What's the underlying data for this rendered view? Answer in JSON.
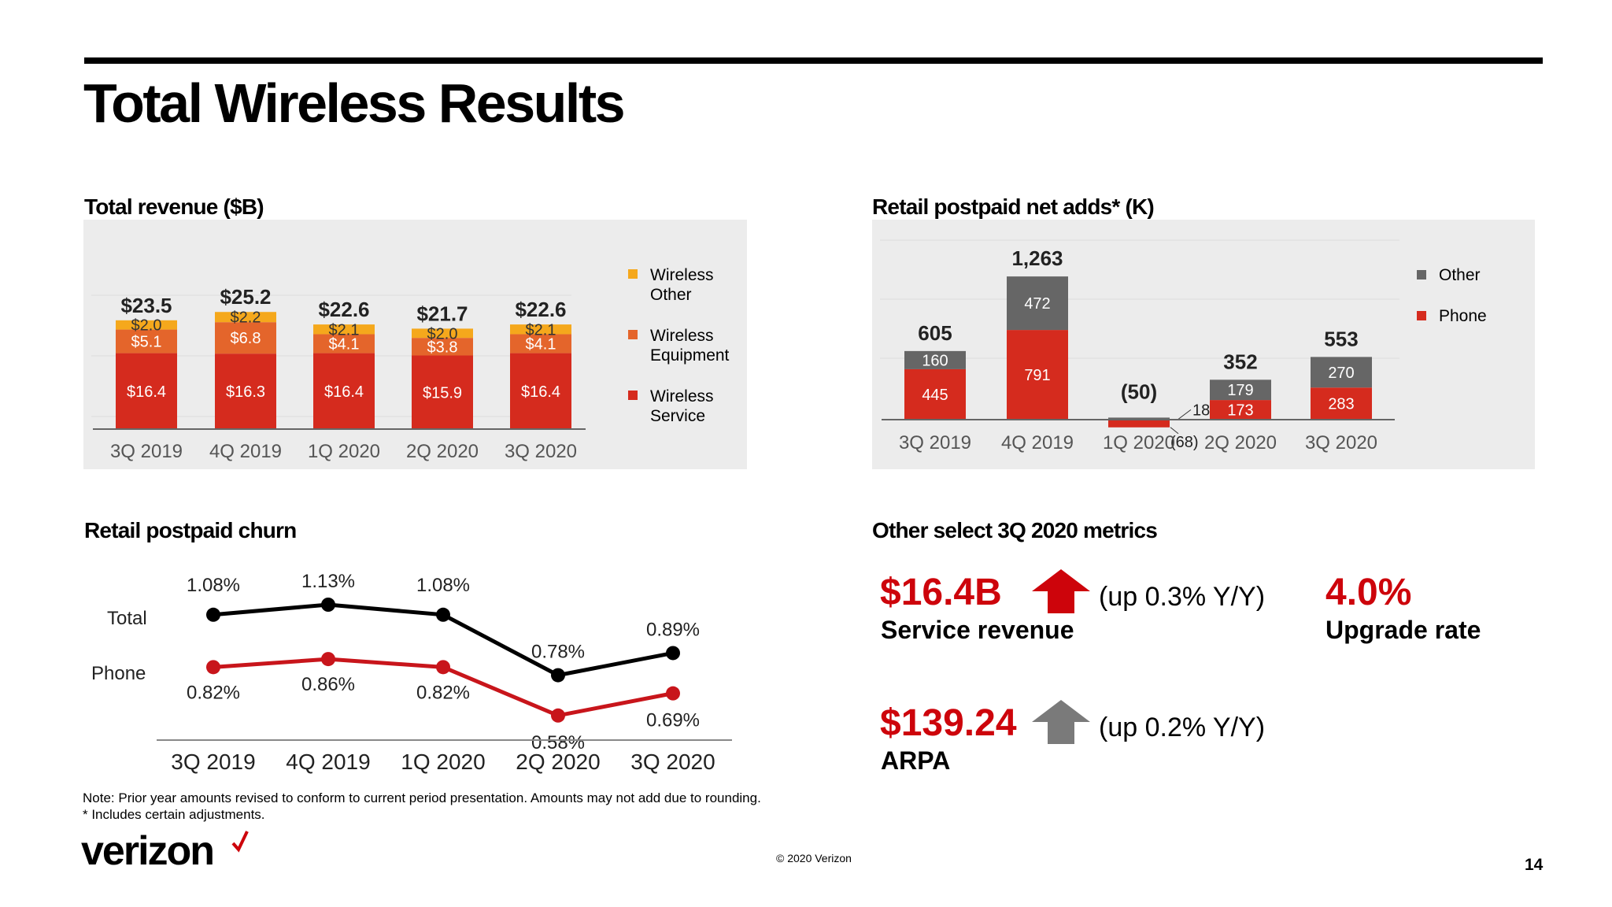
{
  "title": "Total Wireless Results",
  "revenue": {
    "title": "Total revenue ($B)",
    "legend": [
      "Wireless Other",
      "Wireless Equipment",
      "Wireless Service"
    ]
  },
  "netadds": {
    "title": "Retail postpaid net adds* (K)",
    "legend": [
      "Other",
      "Phone"
    ]
  },
  "churn": {
    "title": "Retail postpaid churn",
    "row_labels": [
      "Total",
      "Phone"
    ]
  },
  "metrics": {
    "title": "Other select 3Q 2020 metrics",
    "service_value": "$16.4B",
    "service_label": "Service revenue",
    "service_change": "(up 0.3% Y/Y)",
    "upgrade_value": "4.0%",
    "upgrade_label": "Upgrade rate",
    "arpa_value": "$139.24",
    "arpa_label": "ARPA",
    "arpa_change": "(up 0.2% Y/Y)"
  },
  "note_line1": "Note: Prior year amounts revised to conform to current period presentation. Amounts may not add due to rounding.",
  "note_line2": "* Includes certain adjustments.",
  "logo_text": "verizon",
  "copyright": "© 2020 Verizon",
  "page_number": "14",
  "colors": {
    "brand_red": "#cd040b",
    "service_red": "#d52b1e",
    "equipment_orange": "#e4652b",
    "other_yellow": "#f5a81c",
    "other_gray": "#666666",
    "up_arrow_gray": "#7a7a7a"
  },
  "chart_data": [
    {
      "type": "bar",
      "stacked": true,
      "title": "Total revenue ($B)",
      "categories": [
        "3Q 2019",
        "4Q 2019",
        "1Q 2020",
        "2Q 2020",
        "3Q 2020"
      ],
      "totals": [
        "$23.5",
        "$25.2",
        "$22.6",
        "$21.7",
        "$22.6"
      ],
      "series": [
        {
          "name": "Wireless Service",
          "values": [
            16.4,
            16.3,
            16.4,
            15.9,
            16.4
          ]
        },
        {
          "name": "Wireless Equipment",
          "values": [
            5.1,
            6.8,
            4.1,
            3.8,
            4.1
          ]
        },
        {
          "name": "Wireless Other",
          "values": [
            2.0,
            2.2,
            2.1,
            2.0,
            2.1
          ]
        }
      ],
      "value_labels": [
        [
          "$16.4",
          "$16.3",
          "$16.4",
          "$15.9",
          "$16.4"
        ],
        [
          "$5.1",
          "$6.8",
          "$4.1",
          "$3.8",
          "$4.1"
        ],
        [
          "$2.0",
          "$2.2",
          "$2.1",
          "$2.0",
          "$2.1"
        ]
      ],
      "legend": "right",
      "ylim": [
        0,
        26
      ]
    },
    {
      "type": "bar",
      "stacked": true,
      "title": "Retail postpaid net adds* (K)",
      "categories": [
        "3Q 2019",
        "4Q 2019",
        "1Q 2020",
        "2Q 2020",
        "3Q 2020"
      ],
      "totals": [
        "605",
        "1,263",
        "(50)",
        "352",
        "553"
      ],
      "series": [
        {
          "name": "Phone",
          "values": [
            445,
            791,
            -68,
            173,
            283
          ]
        },
        {
          "name": "Other",
          "values": [
            160,
            472,
            18,
            179,
            270
          ]
        }
      ],
      "value_labels": [
        [
          "445",
          "791",
          "(68)",
          "173",
          "283"
        ],
        [
          "160",
          "472",
          "18",
          "179",
          "270"
        ]
      ],
      "legend": "right",
      "ylim": [
        -100,
        1300
      ]
    },
    {
      "type": "line",
      "title": "Retail postpaid churn",
      "categories": [
        "3Q 2019",
        "4Q 2019",
        "1Q 2020",
        "2Q 2020",
        "3Q 2020"
      ],
      "series": [
        {
          "name": "Total",
          "values": [
            1.08,
            1.13,
            1.08,
            0.78,
            0.89
          ],
          "labels": [
            "1.08%",
            "1.13%",
            "1.08%",
            "0.78%",
            "0.89%"
          ]
        },
        {
          "name": "Phone",
          "values": [
            0.82,
            0.86,
            0.82,
            0.58,
            0.69
          ],
          "labels": [
            "0.82%",
            "0.86%",
            "0.82%",
            "0.58%",
            "0.69%"
          ]
        }
      ],
      "ylim": [
        0.4,
        1.25
      ]
    }
  ]
}
